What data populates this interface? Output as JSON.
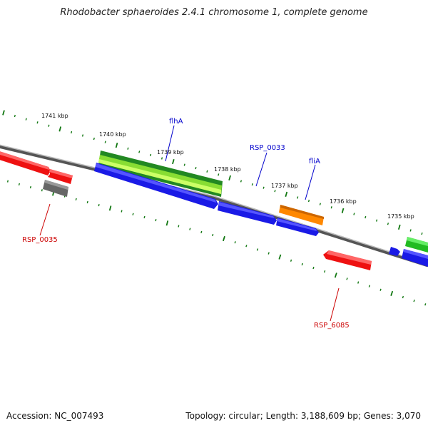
{
  "title": "Rhodobacter sphaeroides 2.4.1 chromosome 1, complete genome",
  "footer": {
    "accession": "Accession: NC_007493",
    "summary": "Topology: circular; Length: 3,188,609 bp; Genes: 3,070"
  },
  "scale": {
    "labels": [
      "1741 kbp",
      "1740 kbp",
      "1739 kbp",
      "1738 kbp",
      "1737 kbp",
      "1736 kbp",
      "1735 kbp"
    ]
  },
  "genes": {
    "flhA": "flhA",
    "rsp0033": "RSP_0033",
    "fliA": "fliA",
    "rsp0035": "RSP_0035",
    "rsp6085": "RSP_6085"
  },
  "colors": {
    "forward_blue": "#1a1ae6",
    "label_blue": "#0000cc",
    "label_red": "#cc0000",
    "red_gene": "#ee1111",
    "green_dark": "#228822",
    "green_light": "#99ee44",
    "orange": "#ff8800",
    "grey": "#666666",
    "tick_green": "#117711"
  }
}
